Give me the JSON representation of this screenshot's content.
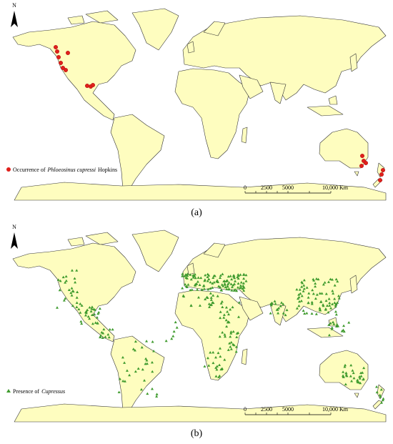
{
  "panels": [
    {
      "north": "N",
      "legend": {
        "prefix": "Occurrence of",
        "species": "Phloeosinus cupressi",
        "suffix": "Hopkins"
      },
      "scale_labels": [
        "0",
        "2500",
        "5000",
        "10,000 Km"
      ],
      "caption": "(a)"
    },
    {
      "north": "N",
      "legend": {
        "prefix": "Presence of",
        "species": "Cupressus"
      },
      "scale_labels": [
        "0",
        "2500",
        "5000",
        "10,000 Km"
      ],
      "caption": "(b)"
    }
  ]
}
